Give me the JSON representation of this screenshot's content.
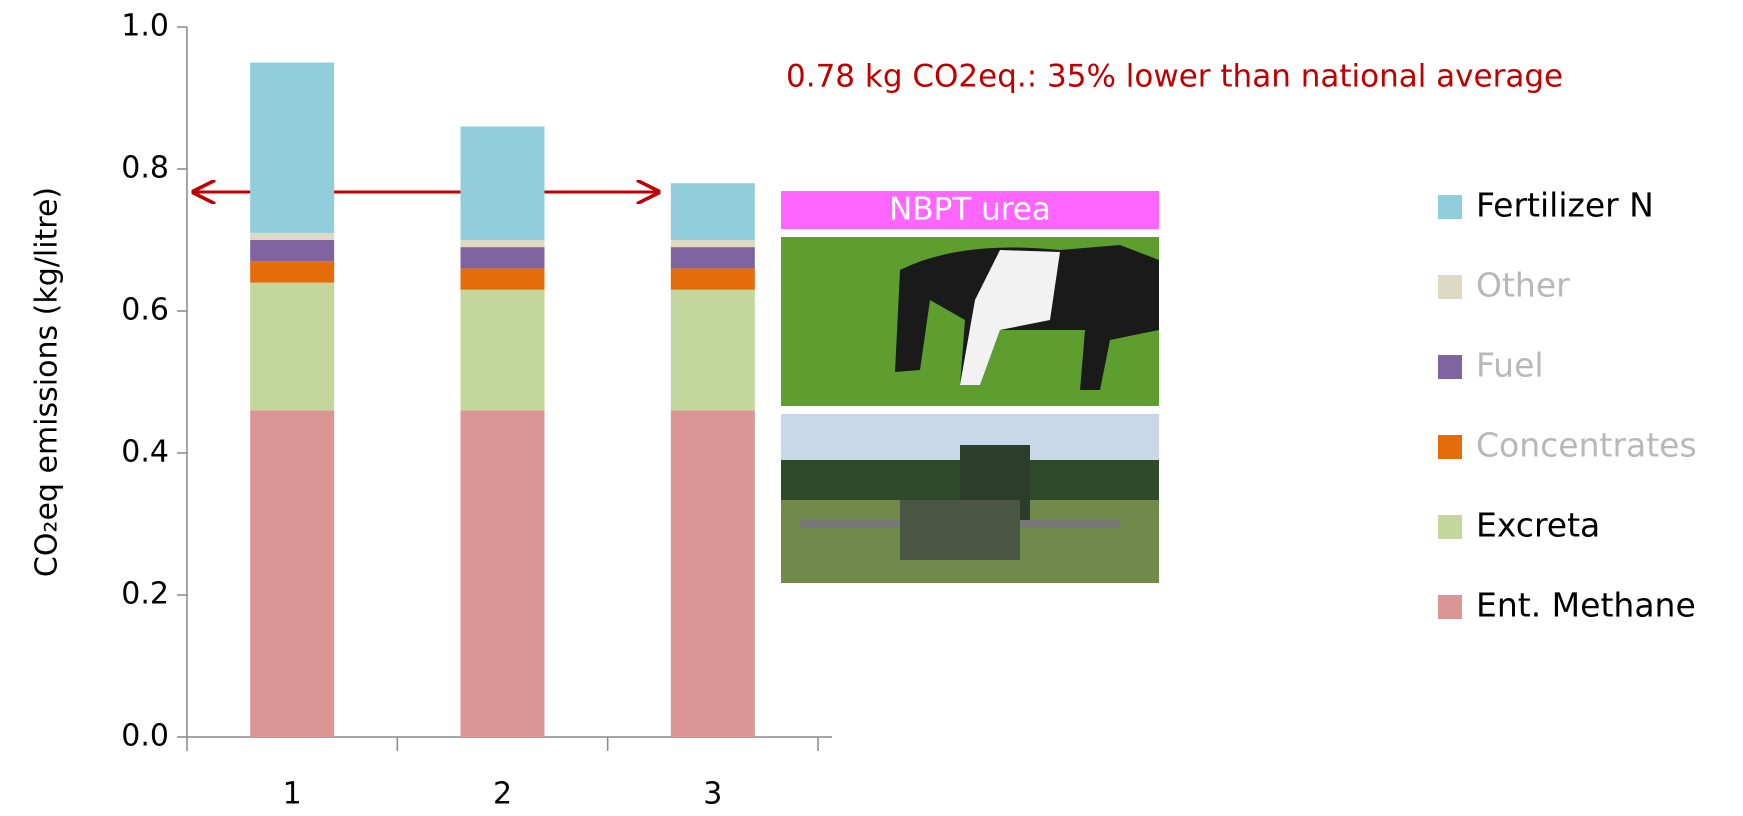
{
  "chart_data": {
    "type": "stacked_bar",
    "ylabel": "CO₂eq emissions (kg/litre)",
    "annotation": "0.78 kg CO2eq.: 35% lower than national average",
    "photo_label": "NBPT urea",
    "categories": [
      "1",
      "2",
      "3"
    ],
    "series": [
      {
        "name": "Ent. Methane",
        "color": "#d99694",
        "legend_text_color": "#000000",
        "values": [
          0.46,
          0.46,
          0.46
        ]
      },
      {
        "name": "Excreta",
        "color": "#c3d69b",
        "legend_text_color": "#000000",
        "values": [
          0.18,
          0.17,
          0.17
        ]
      },
      {
        "name": "Concentrates",
        "color": "#e46c0a",
        "legend_text_color": "#b8b8b8",
        "values": [
          0.03,
          0.03,
          0.03
        ]
      },
      {
        "name": "Fuel",
        "color": "#8064a2",
        "legend_text_color": "#b8b8b8",
        "values": [
          0.03,
          0.03,
          0.03
        ]
      },
      {
        "name": "Other",
        "color": "#ddd9c3",
        "legend_text_color": "#b8b8b8",
        "values": [
          0.01,
          0.01,
          0.01
        ]
      },
      {
        "name": "Fertilizer N",
        "color": "#92cddc",
        "legend_text_color": "#000000",
        "values": [
          0.24,
          0.16,
          0.08
        ]
      }
    ],
    "ylim": [
      0,
      1
    ],
    "yticks": [
      {
        "value": 0,
        "label": "0.0"
      },
      0.2,
      0.4,
      0.6,
      0.8,
      {
        "value": 1,
        "label": "1.0"
      }
    ]
  }
}
